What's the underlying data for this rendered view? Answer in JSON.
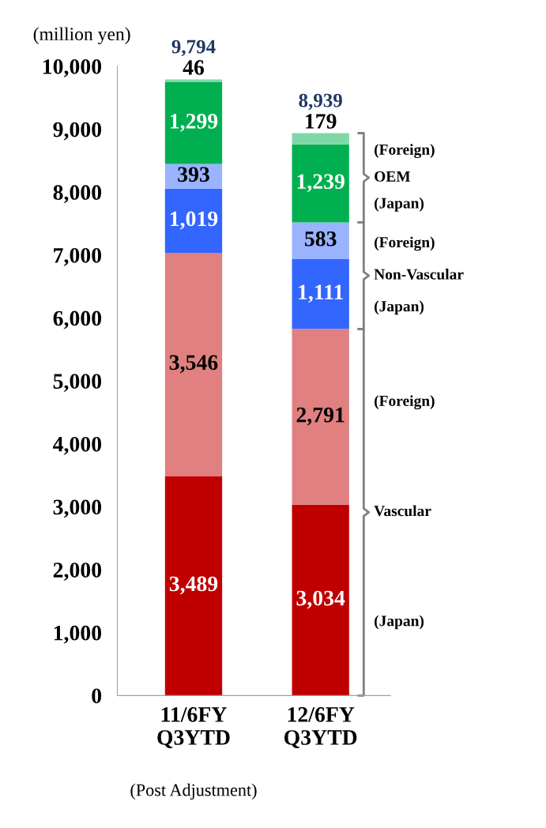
{
  "chart_data": {
    "type": "bar",
    "stacked": true,
    "ylabel": "(million yen)",
    "categories": [
      "11/6FY\nQ3YTD",
      "12/6FY\nQ3YTD"
    ],
    "series": [
      {
        "color": "#c00000",
        "values": [
          3489,
          3034
        ],
        "value_labels": [
          "3,489",
          "3,034"
        ]
      },
      {
        "color": "#e08080",
        "values": [
          3546,
          2791
        ],
        "value_labels": [
          "3,546",
          "2,791"
        ]
      },
      {
        "color": "#3366ff",
        "values": [
          1019,
          1111
        ],
        "value_labels": [
          "1,019",
          "1,111"
        ]
      },
      {
        "color": "#99b3ff",
        "values": [
          393,
          583
        ],
        "value_labels": [
          "393",
          "583"
        ]
      },
      {
        "color": "#00b050",
        "values": [
          1299,
          1239
        ],
        "value_labels": [
          "1,299",
          "1,239"
        ]
      },
      {
        "color": "#80d8a8",
        "values": [
          46,
          179
        ],
        "value_labels": [
          "46",
          "179"
        ]
      }
    ],
    "totals": [
      "9,794",
      "8,939"
    ],
    "ylim": [
      0,
      10000
    ],
    "yticks": [
      {
        "value": 0,
        "label": "0"
      },
      {
        "value": 1000,
        "label": "1,000"
      },
      {
        "value": 2000,
        "label": "2,000"
      },
      {
        "value": 3000,
        "label": "3,000"
      },
      {
        "value": 4000,
        "label": "4,000"
      },
      {
        "value": 5000,
        "label": "5,000"
      },
      {
        "value": 6000,
        "label": "6,000"
      },
      {
        "value": 7000,
        "label": "7,000"
      },
      {
        "value": 8000,
        "label": "8,000"
      },
      {
        "value": 9000,
        "label": "9,000"
      },
      {
        "value": 10000,
        "label": "10,000"
      }
    ],
    "grid": false,
    "annotations": [
      "(Foreign)",
      "OEM",
      "(Japan)",
      "(Foreign)",
      "Non-Vascular",
      "(Japan)",
      "(Foreign)",
      "Vascular",
      "(Japan)",
      "(Post Adjustment)"
    ]
  }
}
